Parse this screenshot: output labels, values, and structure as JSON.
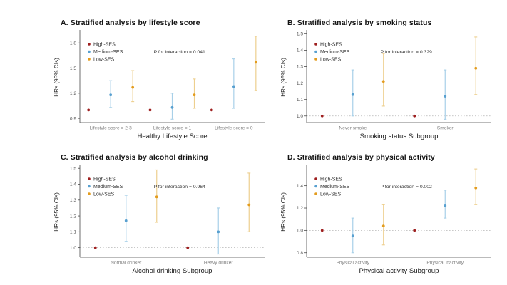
{
  "figure": {
    "name": "Stratified analyses of HRs by SES group",
    "ylabel": "HRs (95% CIs)",
    "legend": [
      "High-SES",
      "Medium-SES",
      "Low-SES"
    ],
    "colors": {
      "high_point": "#9e1f1f",
      "high_line": "#9e1f1f",
      "medium_point": "#58a0d0",
      "medium_line": "#a8d0e8",
      "low_point": "#e39c1e",
      "low_line": "#edcf8e",
      "reference_line": "#b5b5b5",
      "axis": "#4a4a4a",
      "tick_label": "#555555",
      "category_label": "#808080",
      "axis_title": "#1a1a1a",
      "legend_text": "#333333",
      "background": "#ffffff"
    }
  },
  "chart_data": [
    {
      "type": "scatter",
      "title": "A. Stratified analysis by lifestyle score",
      "p_text": "P for interaction = 0.041",
      "xlabel": "Healthy Lifestyle Score",
      "ylabel": "HRs (95% CIs)",
      "categories": [
        "Lifestyle score = 2-3",
        "Lifestyle score = 1",
        "Lifestyle score = 0"
      ],
      "yticks": [
        0.9,
        1.2,
        1.5,
        1.8
      ],
      "ylim": [
        0.85,
        1.93
      ],
      "ref_line": 1.0,
      "legend_position": "top-left",
      "grid": false,
      "series": [
        {
          "name": "High-SES",
          "values": [
            1.0,
            1.0,
            1.0
          ],
          "ci_low": [
            null,
            null,
            null
          ],
          "ci_high": [
            null,
            null,
            null
          ]
        },
        {
          "name": "Medium-SES",
          "values": [
            1.18,
            1.03,
            1.28
          ],
          "ci_low": [
            1.03,
            0.89,
            1.02
          ],
          "ci_high": [
            1.35,
            1.2,
            1.61
          ]
        },
        {
          "name": "Low-SES",
          "values": [
            1.27,
            1.18,
            1.57
          ],
          "ci_low": [
            1.1,
            1.02,
            1.23
          ],
          "ci_high": [
            1.47,
            1.37,
            1.88
          ]
        }
      ]
    },
    {
      "type": "scatter",
      "title": "B. Stratified analysis by smoking status",
      "p_text": "P for interaction = 0.329",
      "xlabel": "Smoking status Subgroup",
      "ylabel": "HRs (95% CIs)",
      "categories": [
        "Never smoke",
        "Smoker"
      ],
      "yticks": [
        1.0,
        1.1,
        1.2,
        1.3,
        1.4,
        1.5
      ],
      "ylim": [
        0.96,
        1.51
      ],
      "ref_line": 1.0,
      "legend_position": "top-left",
      "grid": false,
      "series": [
        {
          "name": "High-SES",
          "values": [
            1.0,
            1.0
          ],
          "ci_low": [
            null,
            null
          ],
          "ci_high": [
            null,
            null
          ]
        },
        {
          "name": "Medium-SES",
          "values": [
            1.13,
            1.12
          ],
          "ci_low": [
            1.0,
            0.98
          ],
          "ci_high": [
            1.28,
            1.28
          ]
        },
        {
          "name": "Low-SES",
          "values": [
            1.21,
            1.29
          ],
          "ci_low": [
            1.06,
            1.13
          ],
          "ci_high": [
            1.38,
            1.48
          ]
        }
      ]
    },
    {
      "type": "scatter",
      "title": "C. Stratified analysis by alcohol drinking",
      "p_text": "P for interaction = 0.964",
      "xlabel": "Alcohol drinking Subgroup",
      "ylabel": "HRs (95% CIs)",
      "categories": [
        "Normal drinker",
        "Heavy drinker"
      ],
      "yticks": [
        1.0,
        1.1,
        1.2,
        1.3,
        1.4,
        1.5
      ],
      "ylim": [
        0.94,
        1.51
      ],
      "ref_line": 1.0,
      "legend_position": "top-left",
      "grid": false,
      "series": [
        {
          "name": "High-SES",
          "values": [
            1.0,
            1.0
          ],
          "ci_low": [
            null,
            null
          ],
          "ci_high": [
            null,
            null
          ]
        },
        {
          "name": "Medium-SES",
          "values": [
            1.17,
            1.1
          ],
          "ci_low": [
            1.04,
            0.96
          ],
          "ci_high": [
            1.33,
            1.25
          ]
        },
        {
          "name": "Low-SES",
          "values": [
            1.32,
            1.27
          ],
          "ci_low": [
            1.16,
            1.1
          ],
          "ci_high": [
            1.49,
            1.47
          ]
        }
      ]
    },
    {
      "type": "scatter",
      "title": "D. Stratified analysis by physical activity",
      "p_text": "P for interaction = 0.002",
      "xlabel": "Physical activity Subgroup",
      "ylabel": "HRs (95% CIs)",
      "categories": [
        "Physical activity",
        "Physical inactivity"
      ],
      "yticks": [
        0.8,
        1.0,
        1.2,
        1.4
      ],
      "ylim": [
        0.76,
        1.57
      ],
      "ref_line": 1.0,
      "legend_position": "top-left",
      "grid": false,
      "series": [
        {
          "name": "High-SES",
          "values": [
            1.0,
            1.0
          ],
          "ci_low": [
            null,
            null
          ],
          "ci_high": [
            null,
            null
          ]
        },
        {
          "name": "Medium-SES",
          "values": [
            0.95,
            1.22
          ],
          "ci_low": [
            0.8,
            1.11
          ],
          "ci_high": [
            1.11,
            1.36
          ]
        },
        {
          "name": "Low-SES",
          "values": [
            1.04,
            1.38
          ],
          "ci_low": [
            0.87,
            1.23
          ],
          "ci_high": [
            1.23,
            1.55
          ]
        }
      ]
    }
  ]
}
